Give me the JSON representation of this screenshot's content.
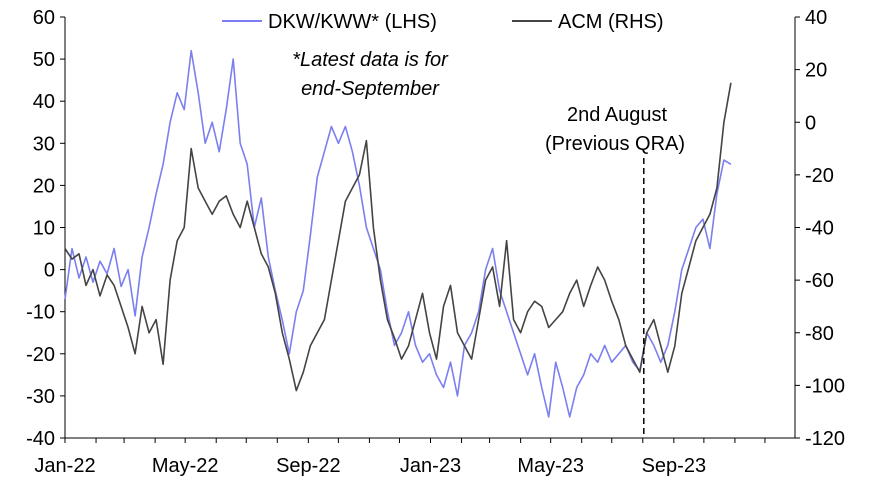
{
  "chart_data": {
    "type": "line",
    "x_ticks": [
      "Jan-22",
      "May-22",
      "Sep-22",
      "Jan-23",
      "May-23",
      "Sep-23"
    ],
    "x_range": [
      "2022-01-01",
      "2023-12-31"
    ],
    "y_left": {
      "ticks": [
        "60",
        "50",
        "40",
        "30",
        "20",
        "10",
        "0",
        "-10",
        "-20",
        "-30",
        "-40"
      ],
      "range": [
        -40,
        60
      ]
    },
    "y_right": {
      "ticks": [
        "40",
        "20",
        "0",
        "-20",
        "-40",
        "-60",
        "-80",
        "-100",
        "-120"
      ],
      "range": [
        -120,
        40
      ]
    },
    "legend": {
      "placement": "top",
      "items": [
        "DKW/KWW* (LHS)",
        "ACM (RHS)"
      ]
    },
    "note_lines": [
      "*Latest data is for",
      "end-September"
    ],
    "annotation": {
      "lines": [
        "2nd August",
        "(Previous QRA)"
      ],
      "date": "2023-08-02"
    },
    "grid": false,
    "series": [
      {
        "name": "DKW/KWW* (LHS)",
        "axis": "left",
        "color": "#7b7ff0",
        "points": [
          [
            "2022-01-01",
            -7
          ],
          [
            "2022-01-08",
            5
          ],
          [
            "2022-01-15",
            -2
          ],
          [
            "2022-01-22",
            3
          ],
          [
            "2022-01-29",
            -3
          ],
          [
            "2022-02-05",
            2
          ],
          [
            "2022-02-12",
            -1
          ],
          [
            "2022-02-19",
            5
          ],
          [
            "2022-02-26",
            -4
          ],
          [
            "2022-03-05",
            0
          ],
          [
            "2022-03-12",
            -11
          ],
          [
            "2022-03-19",
            3
          ],
          [
            "2022-03-26",
            10
          ],
          [
            "2022-04-02",
            18
          ],
          [
            "2022-04-09",
            25
          ],
          [
            "2022-04-16",
            35
          ],
          [
            "2022-04-23",
            42
          ],
          [
            "2022-04-30",
            38
          ],
          [
            "2022-05-07",
            52
          ],
          [
            "2022-05-14",
            42
          ],
          [
            "2022-05-21",
            30
          ],
          [
            "2022-05-28",
            35
          ],
          [
            "2022-06-04",
            28
          ],
          [
            "2022-06-11",
            38
          ],
          [
            "2022-06-18",
            50
          ],
          [
            "2022-06-25",
            30
          ],
          [
            "2022-07-02",
            25
          ],
          [
            "2022-07-09",
            10
          ],
          [
            "2022-07-16",
            17
          ],
          [
            "2022-07-23",
            3
          ],
          [
            "2022-07-30",
            -5
          ],
          [
            "2022-08-06",
            -12
          ],
          [
            "2022-08-13",
            -20
          ],
          [
            "2022-08-20",
            -10
          ],
          [
            "2022-08-27",
            -5
          ],
          [
            "2022-09-03",
            8
          ],
          [
            "2022-09-10",
            22
          ],
          [
            "2022-09-17",
            28
          ],
          [
            "2022-09-24",
            34
          ],
          [
            "2022-10-01",
            30
          ],
          [
            "2022-10-08",
            34
          ],
          [
            "2022-10-15",
            28
          ],
          [
            "2022-10-22",
            20
          ],
          [
            "2022-10-29",
            10
          ],
          [
            "2022-11-05",
            5
          ],
          [
            "2022-11-12",
            0
          ],
          [
            "2022-11-19",
            -10
          ],
          [
            "2022-11-26",
            -18
          ],
          [
            "2022-12-03",
            -15
          ],
          [
            "2022-12-10",
            -10
          ],
          [
            "2022-12-17",
            -18
          ],
          [
            "2022-12-24",
            -22
          ],
          [
            "2022-12-31",
            -20
          ],
          [
            "2023-01-07",
            -25
          ],
          [
            "2023-01-14",
            -28
          ],
          [
            "2023-01-21",
            -22
          ],
          [
            "2023-01-28",
            -30
          ],
          [
            "2023-02-04",
            -18
          ],
          [
            "2023-02-11",
            -15
          ],
          [
            "2023-02-18",
            -10
          ],
          [
            "2023-02-25",
            0
          ],
          [
            "2023-03-04",
            5
          ],
          [
            "2023-03-11",
            -5
          ],
          [
            "2023-03-18",
            -10
          ],
          [
            "2023-03-25",
            -15
          ],
          [
            "2023-04-01",
            -20
          ],
          [
            "2023-04-08",
            -25
          ],
          [
            "2023-04-15",
            -20
          ],
          [
            "2023-04-22",
            -28
          ],
          [
            "2023-04-29",
            -35
          ],
          [
            "2023-05-06",
            -22
          ],
          [
            "2023-05-13",
            -28
          ],
          [
            "2023-05-20",
            -35
          ],
          [
            "2023-05-27",
            -28
          ],
          [
            "2023-06-03",
            -25
          ],
          [
            "2023-06-10",
            -20
          ],
          [
            "2023-06-17",
            -22
          ],
          [
            "2023-06-24",
            -18
          ],
          [
            "2023-07-01",
            -22
          ],
          [
            "2023-07-08",
            -20
          ],
          [
            "2023-07-15",
            -18
          ],
          [
            "2023-07-22",
            -22
          ],
          [
            "2023-07-29",
            -24
          ],
          [
            "2023-08-05",
            -15
          ],
          [
            "2023-08-12",
            -18
          ],
          [
            "2023-08-19",
            -22
          ],
          [
            "2023-08-26",
            -18
          ],
          [
            "2023-09-02",
            -10
          ],
          [
            "2023-09-09",
            0
          ],
          [
            "2023-09-16",
            5
          ],
          [
            "2023-09-23",
            10
          ],
          [
            "2023-09-30",
            12
          ],
          [
            "2023-10-07",
            5
          ],
          [
            "2023-10-14",
            18
          ],
          [
            "2023-10-21",
            26
          ],
          [
            "2023-10-28",
            25
          ]
        ]
      },
      {
        "name": "ACM (RHS)",
        "axis": "right",
        "color": "#444444",
        "points": [
          [
            "2022-01-01",
            -48
          ],
          [
            "2022-01-08",
            -52
          ],
          [
            "2022-01-15",
            -50
          ],
          [
            "2022-01-22",
            -62
          ],
          [
            "2022-01-29",
            -56
          ],
          [
            "2022-02-05",
            -66
          ],
          [
            "2022-02-12",
            -58
          ],
          [
            "2022-02-19",
            -62
          ],
          [
            "2022-02-26",
            -70
          ],
          [
            "2022-03-05",
            -78
          ],
          [
            "2022-03-12",
            -88
          ],
          [
            "2022-03-19",
            -70
          ],
          [
            "2022-03-26",
            -80
          ],
          [
            "2022-04-02",
            -75
          ],
          [
            "2022-04-09",
            -92
          ],
          [
            "2022-04-16",
            -60
          ],
          [
            "2022-04-23",
            -45
          ],
          [
            "2022-04-30",
            -40
          ],
          [
            "2022-05-07",
            -10
          ],
          [
            "2022-05-14",
            -25
          ],
          [
            "2022-05-21",
            -30
          ],
          [
            "2022-05-28",
            -35
          ],
          [
            "2022-06-04",
            -30
          ],
          [
            "2022-06-11",
            -28
          ],
          [
            "2022-06-18",
            -35
          ],
          [
            "2022-06-25",
            -40
          ],
          [
            "2022-07-02",
            -30
          ],
          [
            "2022-07-09",
            -40
          ],
          [
            "2022-07-16",
            -50
          ],
          [
            "2022-07-23",
            -55
          ],
          [
            "2022-07-30",
            -65
          ],
          [
            "2022-08-06",
            -80
          ],
          [
            "2022-08-13",
            -90
          ],
          [
            "2022-08-20",
            -102
          ],
          [
            "2022-08-27",
            -95
          ],
          [
            "2022-09-03",
            -85
          ],
          [
            "2022-09-10",
            -80
          ],
          [
            "2022-09-17",
            -75
          ],
          [
            "2022-09-24",
            -60
          ],
          [
            "2022-10-01",
            -45
          ],
          [
            "2022-10-08",
            -30
          ],
          [
            "2022-10-15",
            -25
          ],
          [
            "2022-10-22",
            -20
          ],
          [
            "2022-10-29",
            -7
          ],
          [
            "2022-11-05",
            -40
          ],
          [
            "2022-11-12",
            -60
          ],
          [
            "2022-11-19",
            -75
          ],
          [
            "2022-11-26",
            -82
          ],
          [
            "2022-12-03",
            -90
          ],
          [
            "2022-12-10",
            -85
          ],
          [
            "2022-12-17",
            -75
          ],
          [
            "2022-12-24",
            -65
          ],
          [
            "2022-12-31",
            -80
          ],
          [
            "2023-01-07",
            -90
          ],
          [
            "2023-01-14",
            -70
          ],
          [
            "2023-01-21",
            -62
          ],
          [
            "2023-01-28",
            -80
          ],
          [
            "2023-02-04",
            -85
          ],
          [
            "2023-02-11",
            -90
          ],
          [
            "2023-02-18",
            -75
          ],
          [
            "2023-02-25",
            -60
          ],
          [
            "2023-03-04",
            -55
          ],
          [
            "2023-03-11",
            -70
          ],
          [
            "2023-03-18",
            -45
          ],
          [
            "2023-03-25",
            -75
          ],
          [
            "2023-04-01",
            -80
          ],
          [
            "2023-04-08",
            -72
          ],
          [
            "2023-04-15",
            -68
          ],
          [
            "2023-04-22",
            -70
          ],
          [
            "2023-04-29",
            -78
          ],
          [
            "2023-05-06",
            -75
          ],
          [
            "2023-05-13",
            -72
          ],
          [
            "2023-05-20",
            -65
          ],
          [
            "2023-05-27",
            -60
          ],
          [
            "2023-06-03",
            -70
          ],
          [
            "2023-06-10",
            -62
          ],
          [
            "2023-06-17",
            -55
          ],
          [
            "2023-06-24",
            -60
          ],
          [
            "2023-07-01",
            -68
          ],
          [
            "2023-07-08",
            -75
          ],
          [
            "2023-07-15",
            -85
          ],
          [
            "2023-07-22",
            -90
          ],
          [
            "2023-07-29",
            -95
          ],
          [
            "2023-08-05",
            -80
          ],
          [
            "2023-08-12",
            -75
          ],
          [
            "2023-08-19",
            -85
          ],
          [
            "2023-08-26",
            -95
          ],
          [
            "2023-09-02",
            -85
          ],
          [
            "2023-09-09",
            -65
          ],
          [
            "2023-09-16",
            -55
          ],
          [
            "2023-09-23",
            -45
          ],
          [
            "2023-09-30",
            -40
          ],
          [
            "2023-10-07",
            -35
          ],
          [
            "2023-10-14",
            -25
          ],
          [
            "2023-10-21",
            0
          ],
          [
            "2023-10-28",
            15
          ]
        ]
      }
    ]
  }
}
